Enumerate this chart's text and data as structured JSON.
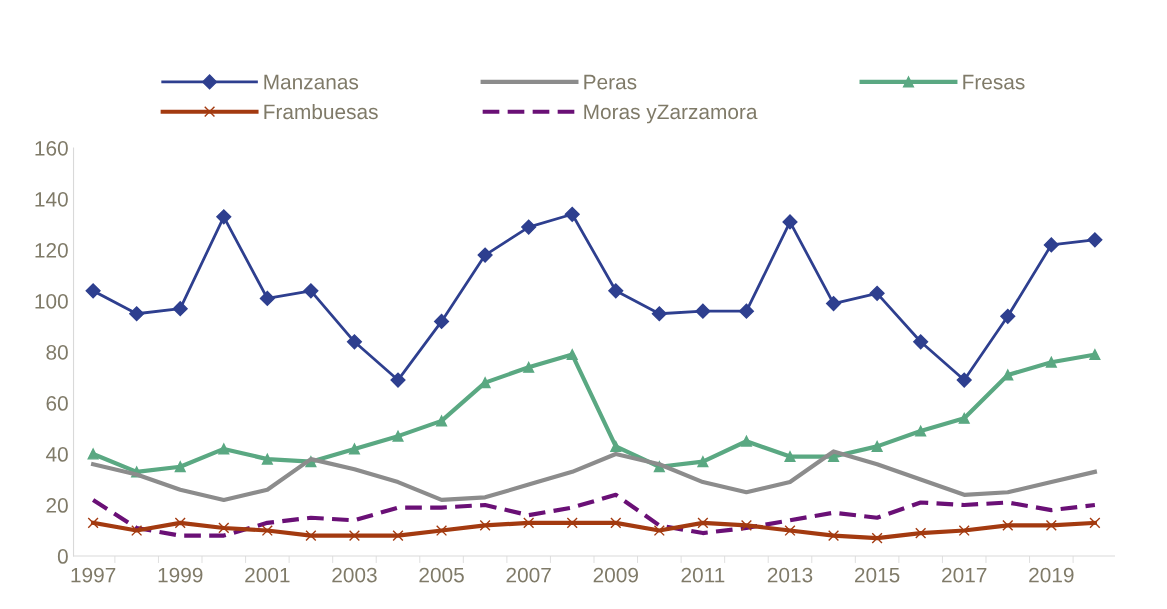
{
  "chart_data": {
    "type": "line",
    "categories": [
      "1997",
      null,
      "1999",
      null,
      "2001",
      null,
      "2003",
      null,
      "2005",
      null,
      "2007",
      null,
      "2009",
      null,
      "2011",
      null,
      "2013",
      null,
      "2015",
      null,
      "2017",
      null,
      "2019",
      null
    ],
    "series": [
      {
        "name": "Manzanas",
        "color": "#2e3f8f",
        "marker": "diamond",
        "values": [
          104,
          95,
          97,
          133,
          101,
          104,
          84,
          69,
          92,
          118,
          129,
          134,
          104,
          95,
          96,
          96,
          131,
          99,
          103,
          84,
          69,
          94,
          122,
          124
        ]
      },
      {
        "name": "Peras",
        "color": "#8c8c8c",
        "marker": "none",
        "values": [
          36,
          32,
          26,
          22,
          26,
          38,
          34,
          29,
          22,
          23,
          28,
          33,
          40,
          36,
          29,
          25,
          29,
          41,
          36,
          30,
          24,
          25,
          29,
          33
        ]
      },
      {
        "name": "Fresas",
        "color": "#5aa882",
        "marker": "triangle",
        "values": [
          40,
          33,
          35,
          42,
          38,
          37,
          42,
          47,
          53,
          68,
          74,
          79,
          43,
          35,
          37,
          45,
          39,
          39,
          43,
          49,
          54,
          71,
          76,
          79
        ]
      },
      {
        "name": "Frambuesas",
        "color": "#a33a10",
        "marker": "cross",
        "values": [
          13,
          10,
          13,
          11,
          10,
          8,
          8,
          8,
          10,
          12,
          13,
          13,
          13,
          10,
          13,
          12,
          10,
          8,
          7,
          9,
          10,
          12,
          12,
          13
        ]
      },
      {
        "name": "Moras yZarzamora",
        "color": "#6a1076",
        "marker": "none",
        "line_style": "dashed",
        "values": [
          22,
          11,
          8,
          8,
          13,
          15,
          14,
          19,
          19,
          20,
          16,
          19,
          24,
          12,
          9,
          11,
          14,
          17,
          15,
          21,
          20,
          21,
          18,
          20
        ]
      }
    ],
    "ylim": [
      0,
      160
    ],
    "yticks": [
      0,
      20,
      40,
      60,
      80,
      100,
      120,
      140,
      160
    ],
    "grid": false,
    "legend": "top"
  }
}
